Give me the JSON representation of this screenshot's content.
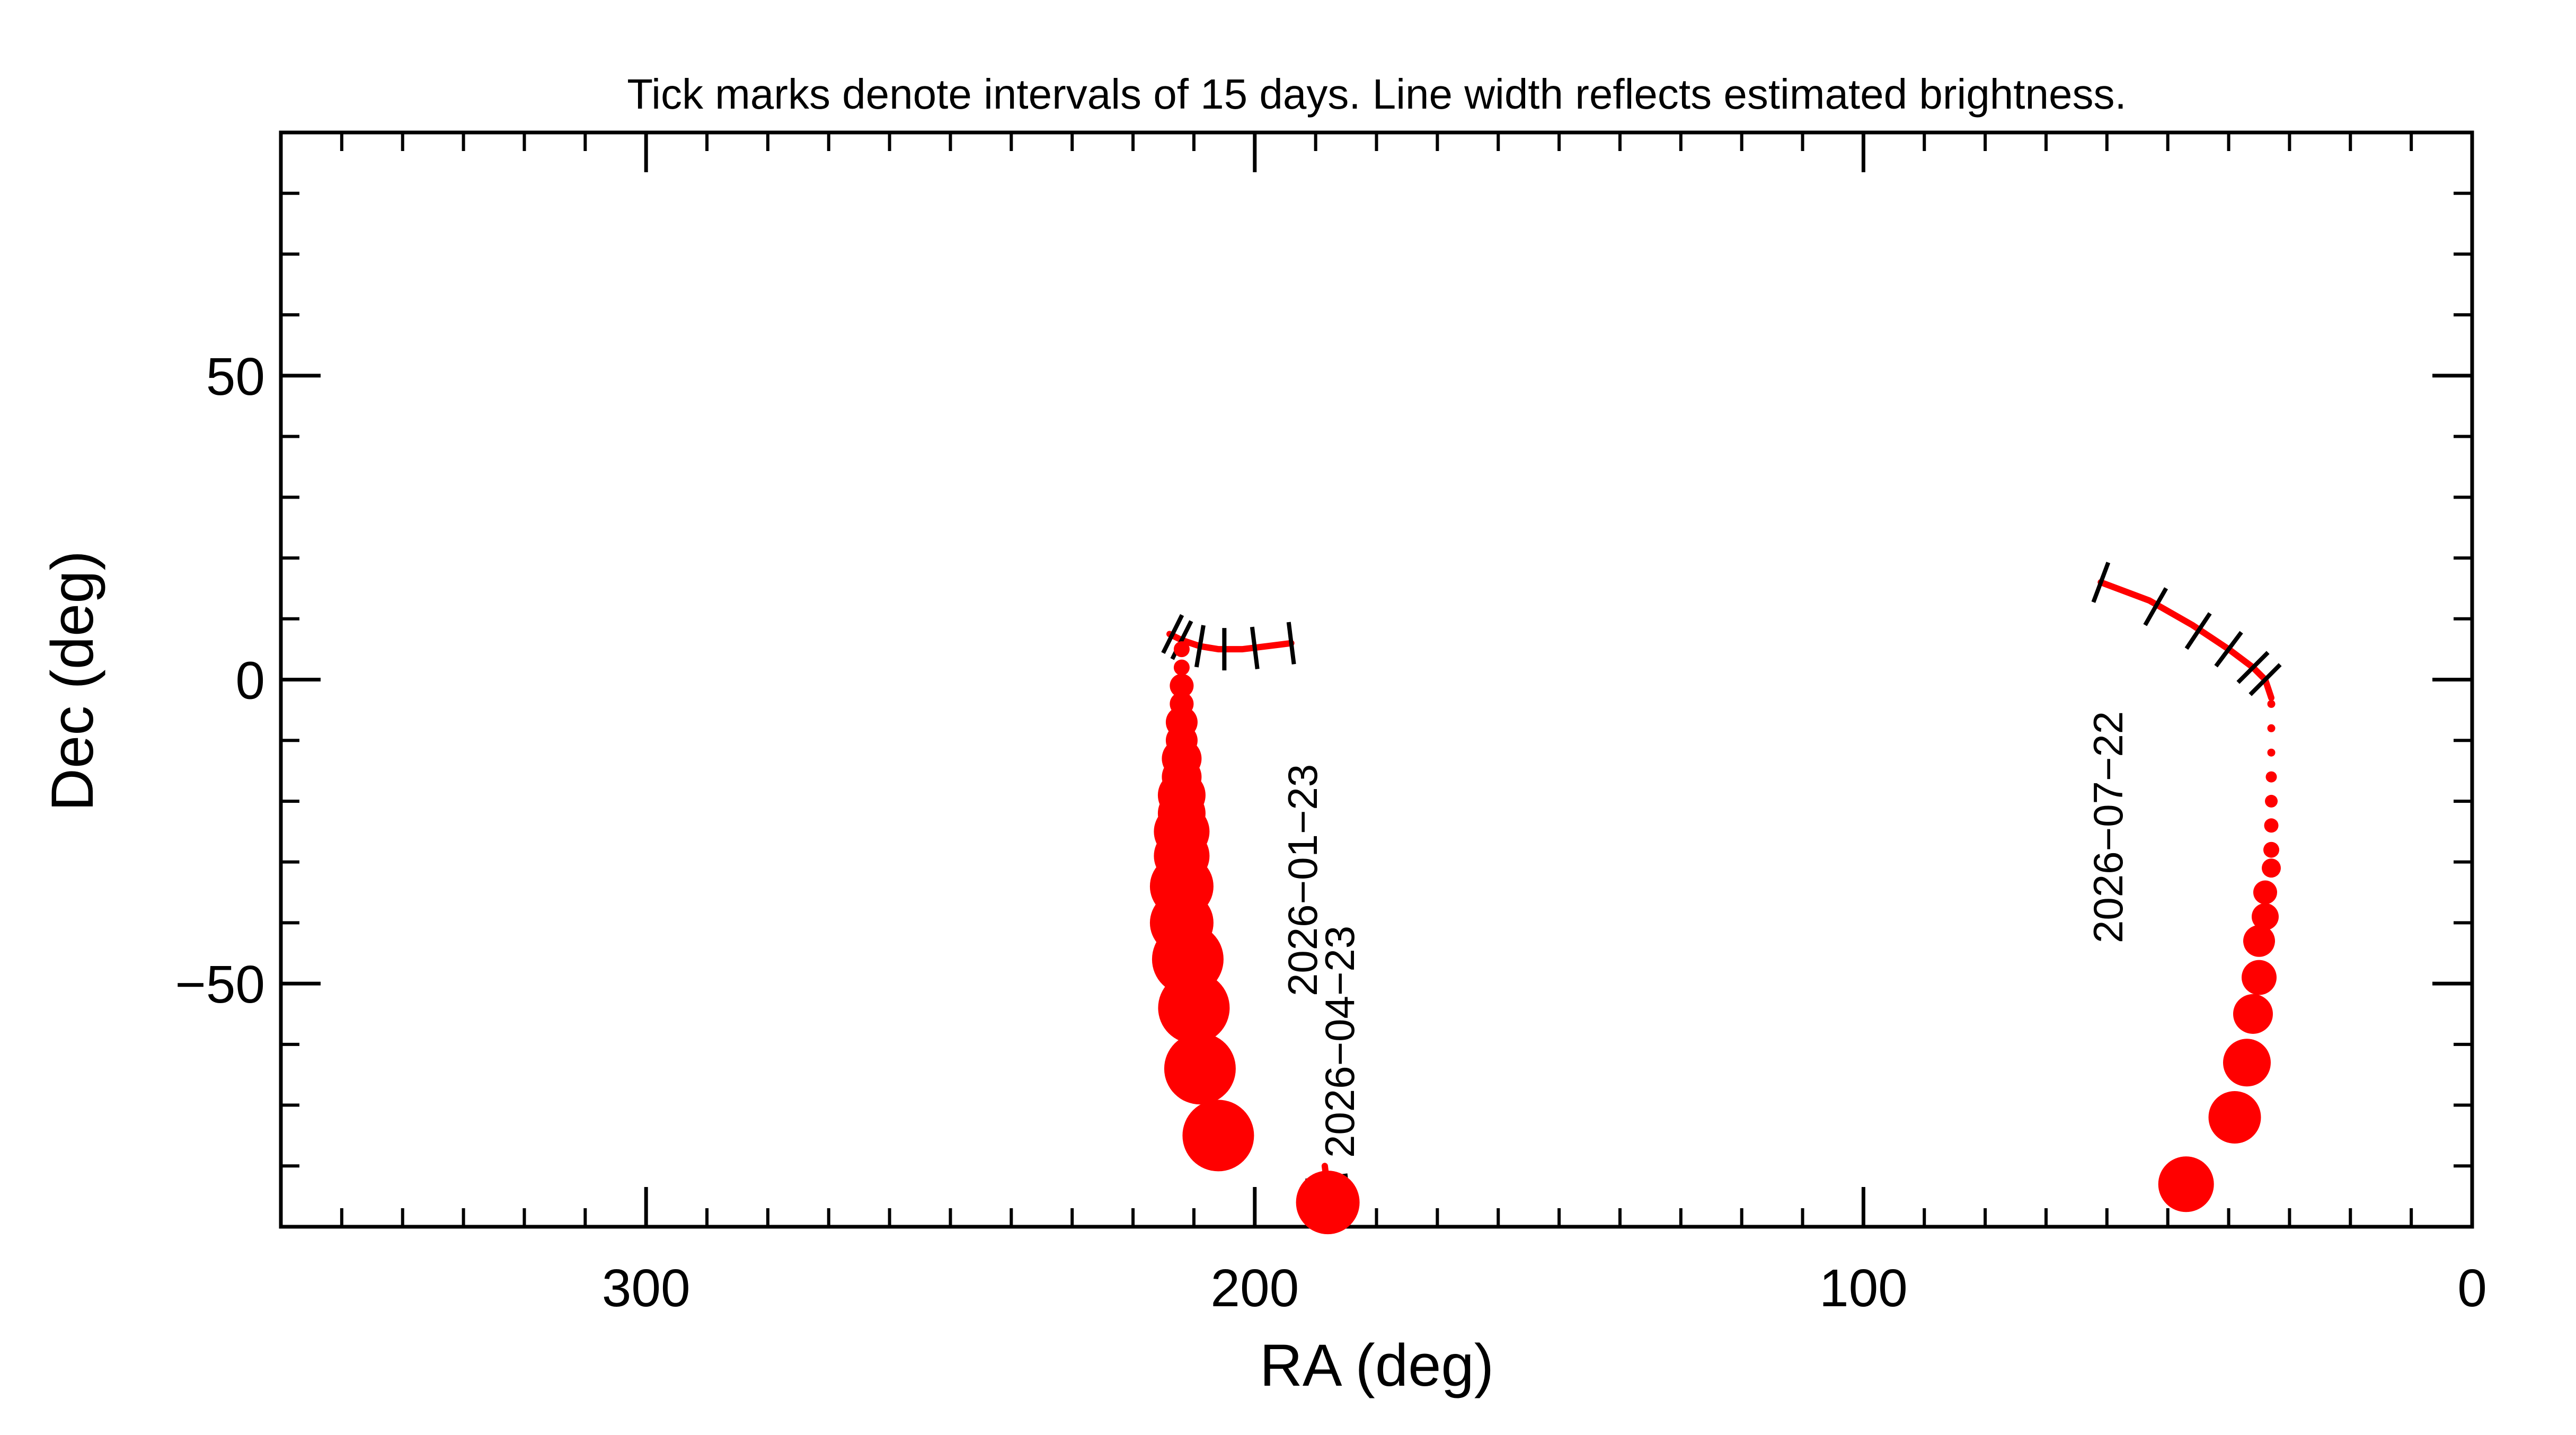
{
  "chart_data": {
    "type": "scatter",
    "title": "Tick marks denote intervals of 15 days.  Line width reflects estimated brightness.",
    "xlabel": "RA (deg)",
    "ylabel": "Dec (deg)",
    "xlim": [
      360,
      0
    ],
    "ylim": [
      -90,
      90
    ],
    "x_ticks": [
      300,
      200,
      100,
      0
    ],
    "y_ticks": [
      50,
      0,
      -50
    ],
    "x_tick_labels": [
      "300",
      "200",
      "100",
      "0"
    ],
    "y_tick_labels": [
      "50",
      "0",
      "−50"
    ],
    "grid": false,
    "series": [
      {
        "label": "2026−01−23",
        "color": "#ff0000",
        "track": [
          [
            194,
            6
          ],
          [
            198,
            5.5
          ],
          [
            202,
            5
          ],
          [
            206,
            5
          ],
          [
            209,
            5.5
          ],
          [
            212,
            6.5
          ],
          [
            214,
            7.5
          ]
        ],
        "date_ticks": [
          [
            194,
            6
          ],
          [
            200,
            5.2
          ],
          [
            205,
            5
          ],
          [
            209,
            5.5
          ],
          [
            212,
            6.5
          ],
          [
            213.5,
            7.5
          ]
        ],
        "markers": [
          {
            "ra": 212,
            "dec": 5,
            "size": 1
          },
          {
            "ra": 212,
            "dec": 2,
            "size": 1
          },
          {
            "ra": 212,
            "dec": -1,
            "size": 1.5
          },
          {
            "ra": 212,
            "dec": -4,
            "size": 1.5
          },
          {
            "ra": 212,
            "dec": -7,
            "size": 2
          },
          {
            "ra": 212,
            "dec": -10,
            "size": 2
          },
          {
            "ra": 212,
            "dec": -13,
            "size": 2.5
          },
          {
            "ra": 212,
            "dec": -16,
            "size": 2.5
          },
          {
            "ra": 212,
            "dec": -19,
            "size": 3
          },
          {
            "ra": 212,
            "dec": -22,
            "size": 3
          },
          {
            "ra": 212,
            "dec": -25,
            "size": 3.5
          },
          {
            "ra": 212,
            "dec": -29,
            "size": 3.5
          },
          {
            "ra": 212,
            "dec": -34,
            "size": 4
          },
          {
            "ra": 212,
            "dec": -40,
            "size": 4
          },
          {
            "ra": 211,
            "dec": -46,
            "size": 4.5
          },
          {
            "ra": 210,
            "dec": -54,
            "size": 4.5
          },
          {
            "ra": 209,
            "dec": -64,
            "size": 4.5
          },
          {
            "ra": 206,
            "dec": -75,
            "size": 4.5
          }
        ]
      },
      {
        "label": "2026−04−23",
        "color": "#ff0000",
        "track": [
          [
            188,
            -84
          ],
          [
            188.5,
            -80
          ]
        ],
        "date_ticks": [
          [
            188.2,
            -82
          ]
        ],
        "markers": [
          {
            "ra": 188,
            "dec": -86,
            "size": 4
          }
        ]
      },
      {
        "label": "2026−07−22",
        "color": "#ff0000",
        "track": [
          [
            61,
            16
          ],
          [
            53,
            13
          ],
          [
            46,
            9
          ],
          [
            40,
            5
          ],
          [
            36,
            2
          ],
          [
            34,
            0
          ],
          [
            33,
            -3
          ]
        ],
        "date_ticks": [
          [
            61,
            16
          ],
          [
            52,
            12
          ],
          [
            45,
            8
          ],
          [
            40,
            5
          ],
          [
            36,
            2
          ],
          [
            34,
            0
          ]
        ],
        "markers": [
          {
            "ra": 33,
            "dec": -4,
            "size": 0.5
          },
          {
            "ra": 33,
            "dec": -8,
            "size": 0.5
          },
          {
            "ra": 33,
            "dec": -12,
            "size": 0.5
          },
          {
            "ra": 33,
            "dec": -16,
            "size": 0.7
          },
          {
            "ra": 33,
            "dec": -20,
            "size": 0.8
          },
          {
            "ra": 33,
            "dec": -24,
            "size": 0.9
          },
          {
            "ra": 33,
            "dec": -28,
            "size": 1
          },
          {
            "ra": 33,
            "dec": -31,
            "size": 1.2
          },
          {
            "ra": 34,
            "dec": -35,
            "size": 1.5
          },
          {
            "ra": 34,
            "dec": -39,
            "size": 1.7
          },
          {
            "ra": 35,
            "dec": -43,
            "size": 2
          },
          {
            "ra": 35,
            "dec": -49,
            "size": 2.2
          },
          {
            "ra": 36,
            "dec": -55,
            "size": 2.5
          },
          {
            "ra": 37,
            "dec": -63,
            "size": 3
          },
          {
            "ra": 39,
            "dec": -72,
            "size": 3.3
          },
          {
            "ra": 47,
            "dec": -83,
            "size": 3.5
          }
        ]
      }
    ]
  }
}
